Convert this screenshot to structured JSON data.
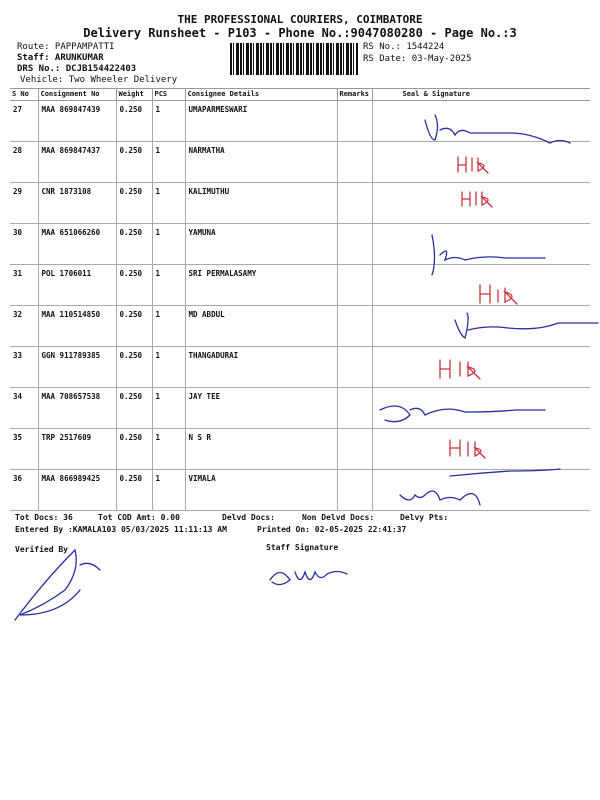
{
  "header": {
    "company": "THE PROFESSIONAL COURIERS, COIMBATORE",
    "subtitle": "Delivery Runsheet - P103 - Phone No.:9047080280 - Page No.:3",
    "route": "Route: PAPPAMPATTI",
    "staff": "Staff: ARUNKUMAR",
    "drs_no": "DRS No.: DCJB154422403",
    "vehicle": "Vehicle: Two Wheeler Delivery",
    "rs_no": "RS No.: 1544224",
    "rs_date": "RS Date: 03-May-2025"
  },
  "table": {
    "columns": [
      "S No",
      "Consignment No",
      "Weight",
      "PCS",
      "Consignee Details",
      "Remarks",
      "Seal & Signature"
    ],
    "rows": [
      {
        "sno": "27",
        "consignment": "MAA 869847439",
        "weight": "0.250",
        "pcs": "1",
        "consignee": "UMAPARMESWARI",
        "remarks": ""
      },
      {
        "sno": "28",
        "consignment": "MAA 869847437",
        "weight": "0.250",
        "pcs": "1",
        "consignee": "NARMATHA",
        "remarks": ""
      },
      {
        "sno": "29",
        "consignment": "CNR 1873108",
        "weight": "0.250",
        "pcs": "1",
        "consignee": "KALIMUTHU",
        "remarks": ""
      },
      {
        "sno": "30",
        "consignment": "MAA 651066260",
        "weight": "0.250",
        "pcs": "1",
        "consignee": "YAMUNA",
        "remarks": ""
      },
      {
        "sno": "31",
        "consignment": "POL 1706011",
        "weight": "0.250",
        "pcs": "1",
        "consignee": "SRI PERMALASAMY",
        "remarks": ""
      },
      {
        "sno": "32",
        "consignment": "MAA 110514850",
        "weight": "0.250",
        "pcs": "1",
        "consignee": "MD ABDUL",
        "remarks": ""
      },
      {
        "sno": "33",
        "consignment": "GGN 911789385",
        "weight": "0.250",
        "pcs": "1",
        "consignee": "THANGADURAI",
        "remarks": ""
      },
      {
        "sno": "34",
        "consignment": "MAA 708657538",
        "weight": "0.250",
        "pcs": "1",
        "consignee": "JAY TEE",
        "remarks": ""
      },
      {
        "sno": "35",
        "consignment": "TRP 2517609",
        "weight": "0.250",
        "pcs": "1",
        "consignee": "N S R",
        "remarks": ""
      },
      {
        "sno": "36",
        "consignment": "MAA 866989425",
        "weight": "0.250",
        "pcs": "1",
        "consignee": "VIMALA",
        "remarks": ""
      }
    ]
  },
  "footer": {
    "tot_docs": "Tot Docs:  36",
    "tot_cod": "Tot COD Amt:    0.00",
    "delvd_docs": "Delvd Docs:",
    "non_delvd_docs": "Non Delvd Docs:",
    "delvy_pts": "Delvy Pts:",
    "entered_by": "Entered By :KAMALA103 05/03/2025 11:11:13 AM",
    "printed_on": "Printed On: 02-05-2025 22:41:37",
    "verified_by": "Verified By",
    "staff_signature": "Staff Signature"
  },
  "colors": {
    "ink_blue": "#2a2f9e",
    "ink_red": "#c8323c"
  }
}
